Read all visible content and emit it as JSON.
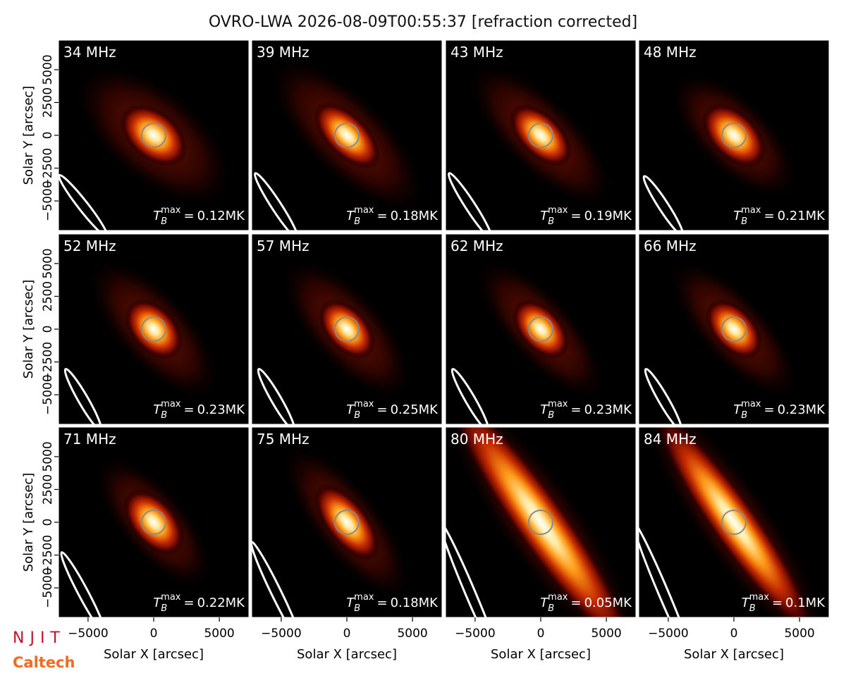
{
  "title": "OVRO-LWA 2026-08-09T00:55:37 [refraction corrected]",
  "axes": {
    "xlabel": "Solar X [arcsec]",
    "ylabel": "Solar Y [arcsec]",
    "xlim": [
      -7250,
      7250
    ],
    "ylim": [
      -7250,
      7250
    ],
    "xticks": [
      {
        "value": -5000,
        "label": "−5000"
      },
      0,
      5000
    ],
    "yticks": [
      {
        "value": -5000,
        "label": "−5000"
      },
      {
        "value": -2500,
        "label": "−2500"
      },
      0,
      2500,
      5000
    ]
  },
  "tb_symbol": {
    "symbol": "T",
    "sub": "B",
    "sup": "max",
    "eq": "="
  },
  "panels": [
    {
      "freq": "34 MHz",
      "tb_max": "0.12MK"
    },
    {
      "freq": "39 MHz",
      "tb_max": "0.18MK"
    },
    {
      "freq": "43 MHz",
      "tb_max": "0.19MK"
    },
    {
      "freq": "48 MHz",
      "tb_max": "0.21MK"
    },
    {
      "freq": "52 MHz",
      "tb_max": "0.23MK"
    },
    {
      "freq": "57 MHz",
      "tb_max": "0.25MK"
    },
    {
      "freq": "62 MHz",
      "tb_max": "0.23MK"
    },
    {
      "freq": "66 MHz",
      "tb_max": "0.23MK"
    },
    {
      "freq": "71 MHz",
      "tb_max": "0.22MK"
    },
    {
      "freq": "75 MHz",
      "tb_max": "0.18MK"
    },
    {
      "freq": "80 MHz",
      "tb_max": "0.05MK"
    },
    {
      "freq": "84 MHz",
      "tb_max": "0.1MK"
    }
  ],
  "logos": {
    "top": "NJIT",
    "bottom": "Caltech"
  }
}
